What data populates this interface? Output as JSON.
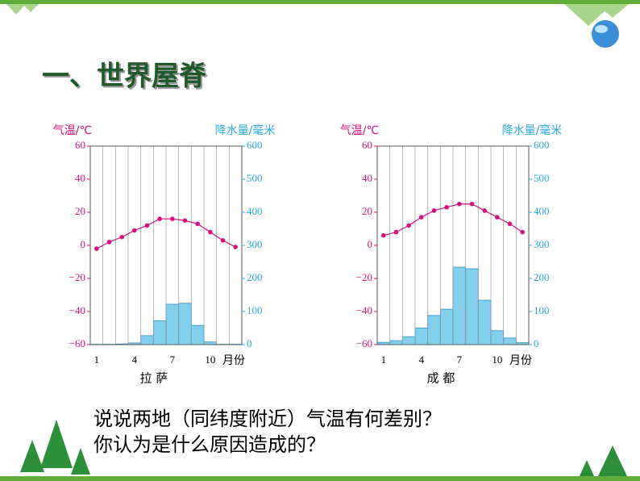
{
  "slide": {
    "heading": "一、世界屋脊",
    "question": [
      "说说两地（同纬度附近）气温有何差别？",
      "你认为是什么原因造成的？"
    ]
  },
  "chart_data": [
    {
      "type": "combo",
      "y_title": "气温/℃",
      "y2_title": "降水量/毫米",
      "x_label": "月份",
      "caption": "拉  萨",
      "categories": [
        "1",
        null,
        null,
        "4",
        null,
        null,
        "7",
        null,
        null,
        "10",
        null,
        null
      ],
      "ylim": [
        -60,
        60
      ],
      "yticks": [
        {
          "value": -60,
          "label": "−60"
        },
        {
          "value": -40,
          "label": "−40"
        },
        {
          "value": -20,
          "label": "−20"
        },
        0,
        20,
        40,
        60
      ],
      "y2lim": [
        0,
        600
      ],
      "y2ticks": [
        0,
        100,
        200,
        300,
        400,
        500,
        600
      ],
      "grid": true,
      "series": [
        {
          "kind": "bar",
          "axis": "y2",
          "color": "#82cfee",
          "values": [
            1,
            1,
            2,
            5,
            27,
            72,
            122,
            125,
            58,
            8,
            1,
            1
          ]
        },
        {
          "kind": "line",
          "color": "#d4127c",
          "values": [
            -2,
            2,
            5,
            9,
            12,
            16,
            16,
            15,
            13,
            8,
            3,
            -1
          ]
        }
      ]
    },
    {
      "type": "combo",
      "y_title": "气温/℃",
      "y2_title": "降水量/毫米",
      "x_label": "月份",
      "caption": "成  都",
      "categories": [
        "1",
        null,
        null,
        "4",
        null,
        null,
        "7",
        null,
        null,
        "10",
        null,
        null
      ],
      "ylim": [
        -60,
        60
      ],
      "yticks": [
        {
          "value": -60,
          "label": "−60"
        },
        {
          "value": -40,
          "label": "−40"
        },
        {
          "value": -20,
          "label": "−20"
        },
        0,
        20,
        40,
        60
      ],
      "y2lim": [
        0,
        600
      ],
      "y2ticks": [
        0,
        100,
        200,
        300,
        400,
        500,
        600
      ],
      "grid": true,
      "series": [
        {
          "kind": "bar",
          "axis": "y2",
          "color": "#82cfee",
          "values": [
            7,
            12,
            24,
            50,
            88,
            107,
            234,
            229,
            134,
            42,
            20,
            6
          ]
        },
        {
          "kind": "line",
          "color": "#d4127c",
          "values": [
            6,
            8,
            12,
            17,
            21,
            23,
            25,
            25,
            21,
            17,
            13,
            8
          ]
        }
      ]
    }
  ]
}
